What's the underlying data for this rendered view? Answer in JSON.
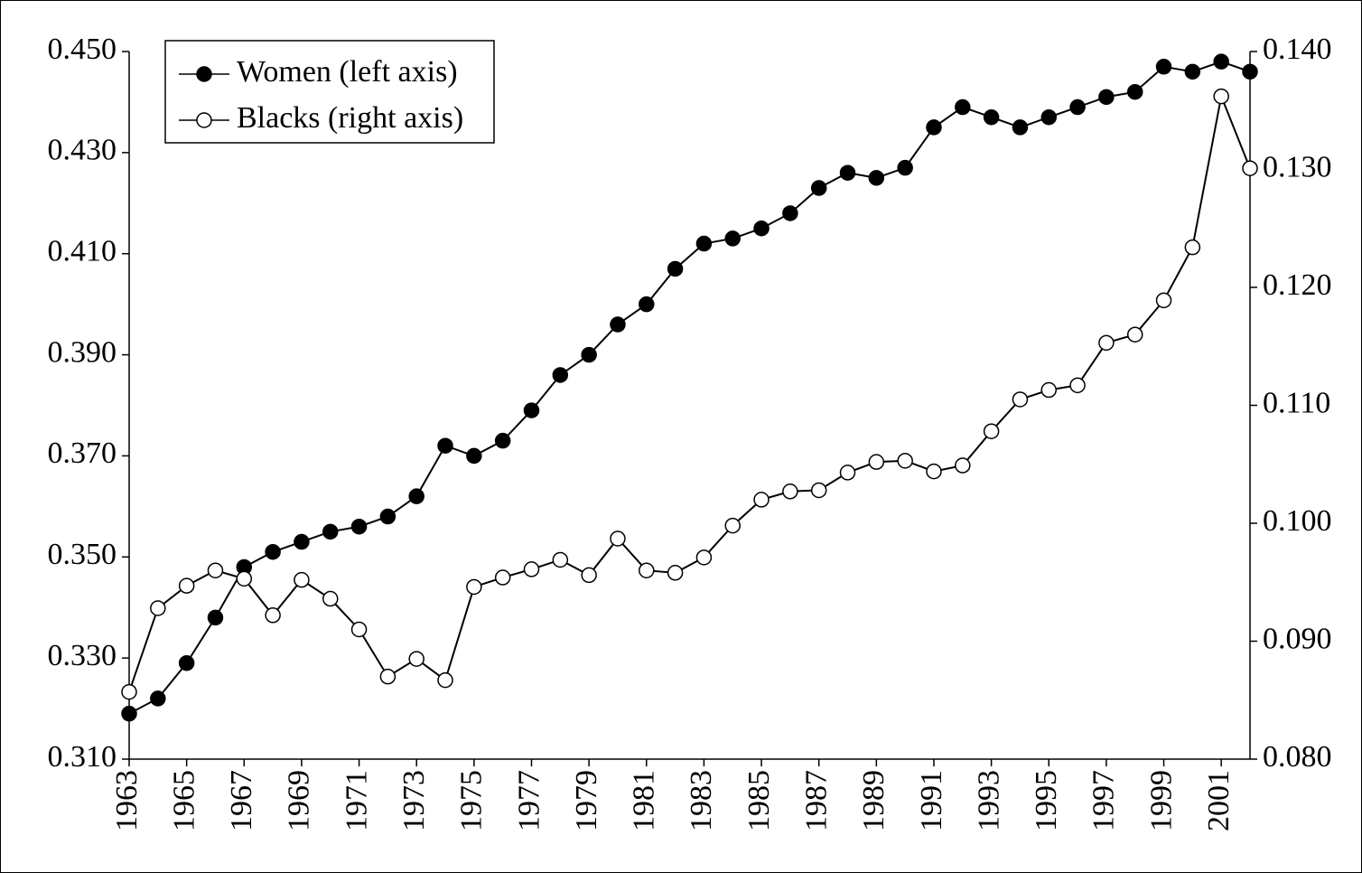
{
  "chart_data": {
    "type": "line",
    "x": [
      1963,
      1964,
      1965,
      1966,
      1967,
      1968,
      1969,
      1970,
      1971,
      1972,
      1973,
      1974,
      1975,
      1976,
      1977,
      1978,
      1979,
      1980,
      1981,
      1982,
      1983,
      1984,
      1985,
      1986,
      1987,
      1988,
      1989,
      1990,
      1991,
      1992,
      1993,
      1994,
      1995,
      1996,
      1997,
      1998,
      1999,
      2000,
      2001,
      2002
    ],
    "xlim": [
      1963,
      2002
    ],
    "xticks": [
      1963,
      1965,
      1967,
      1969,
      1971,
      1973,
      1975,
      1977,
      1979,
      1981,
      1983,
      1985,
      1987,
      1989,
      1991,
      1993,
      1995,
      1997,
      1999,
      2001
    ],
    "ylim": [
      0.31,
      0.45
    ],
    "yticks": [
      {
        "value": 0.31,
        "label": "0.310"
      },
      {
        "value": 0.33,
        "label": "0.330"
      },
      {
        "value": 0.35,
        "label": "0.350"
      },
      {
        "value": 0.37,
        "label": "0.370"
      },
      {
        "value": 0.39,
        "label": "0.390"
      },
      {
        "value": 0.41,
        "label": "0.410"
      },
      {
        "value": 0.43,
        "label": "0.430"
      },
      {
        "value": 0.45,
        "label": "0.450"
      }
    ],
    "y2lim": [
      0.08,
      0.14
    ],
    "y2ticks": [
      {
        "value": 0.08,
        "label": "0.080"
      },
      {
        "value": 0.09,
        "label": "0.090"
      },
      {
        "value": 0.1,
        "label": "0.100"
      },
      {
        "value": 0.11,
        "label": "0.110"
      },
      {
        "value": 0.12,
        "label": "0.120"
      },
      {
        "value": 0.13,
        "label": "0.130"
      },
      {
        "value": 0.14,
        "label": "0.140"
      }
    ],
    "legend": "upper left",
    "series": [
      {
        "name": "Women (left axis)",
        "color": "#000000",
        "marker_fill": "#000000",
        "values": [
          0.319,
          0.322,
          0.329,
          0.338,
          0.348,
          0.351,
          0.353,
          0.355,
          0.356,
          0.358,
          0.362,
          0.372,
          0.37,
          0.373,
          0.379,
          0.386,
          0.39,
          0.396,
          0.4,
          0.407,
          0.412,
          0.413,
          0.415,
          0.418,
          0.423,
          0.426,
          0.425,
          0.427,
          0.435,
          0.439,
          0.437,
          0.435,
          0.437,
          0.439,
          0.441,
          0.442,
          0.447,
          0.446,
          0.448,
          0.446
        ]
      },
      {
        "name": "Blacks (right axis)",
        "color": "#000000",
        "marker_fill": "#ffffff",
        "axis": "y2",
        "values": [
          0.0857,
          0.0928,
          0.0947,
          0.096,
          0.0953,
          0.0922,
          0.0952,
          0.0936,
          0.091,
          0.087,
          0.0885,
          0.0867,
          0.0946,
          0.0954,
          0.0961,
          0.0969,
          0.0956,
          0.0987,
          0.096,
          0.0958,
          0.0971,
          0.0998,
          0.102,
          0.1027,
          0.1028,
          0.1043,
          0.1052,
          0.1053,
          0.1044,
          0.1049,
          0.1078,
          0.1105,
          0.1113,
          0.1117,
          0.1153,
          0.116,
          0.1189,
          0.1234,
          0.1362,
          0.1301
        ]
      }
    ]
  }
}
